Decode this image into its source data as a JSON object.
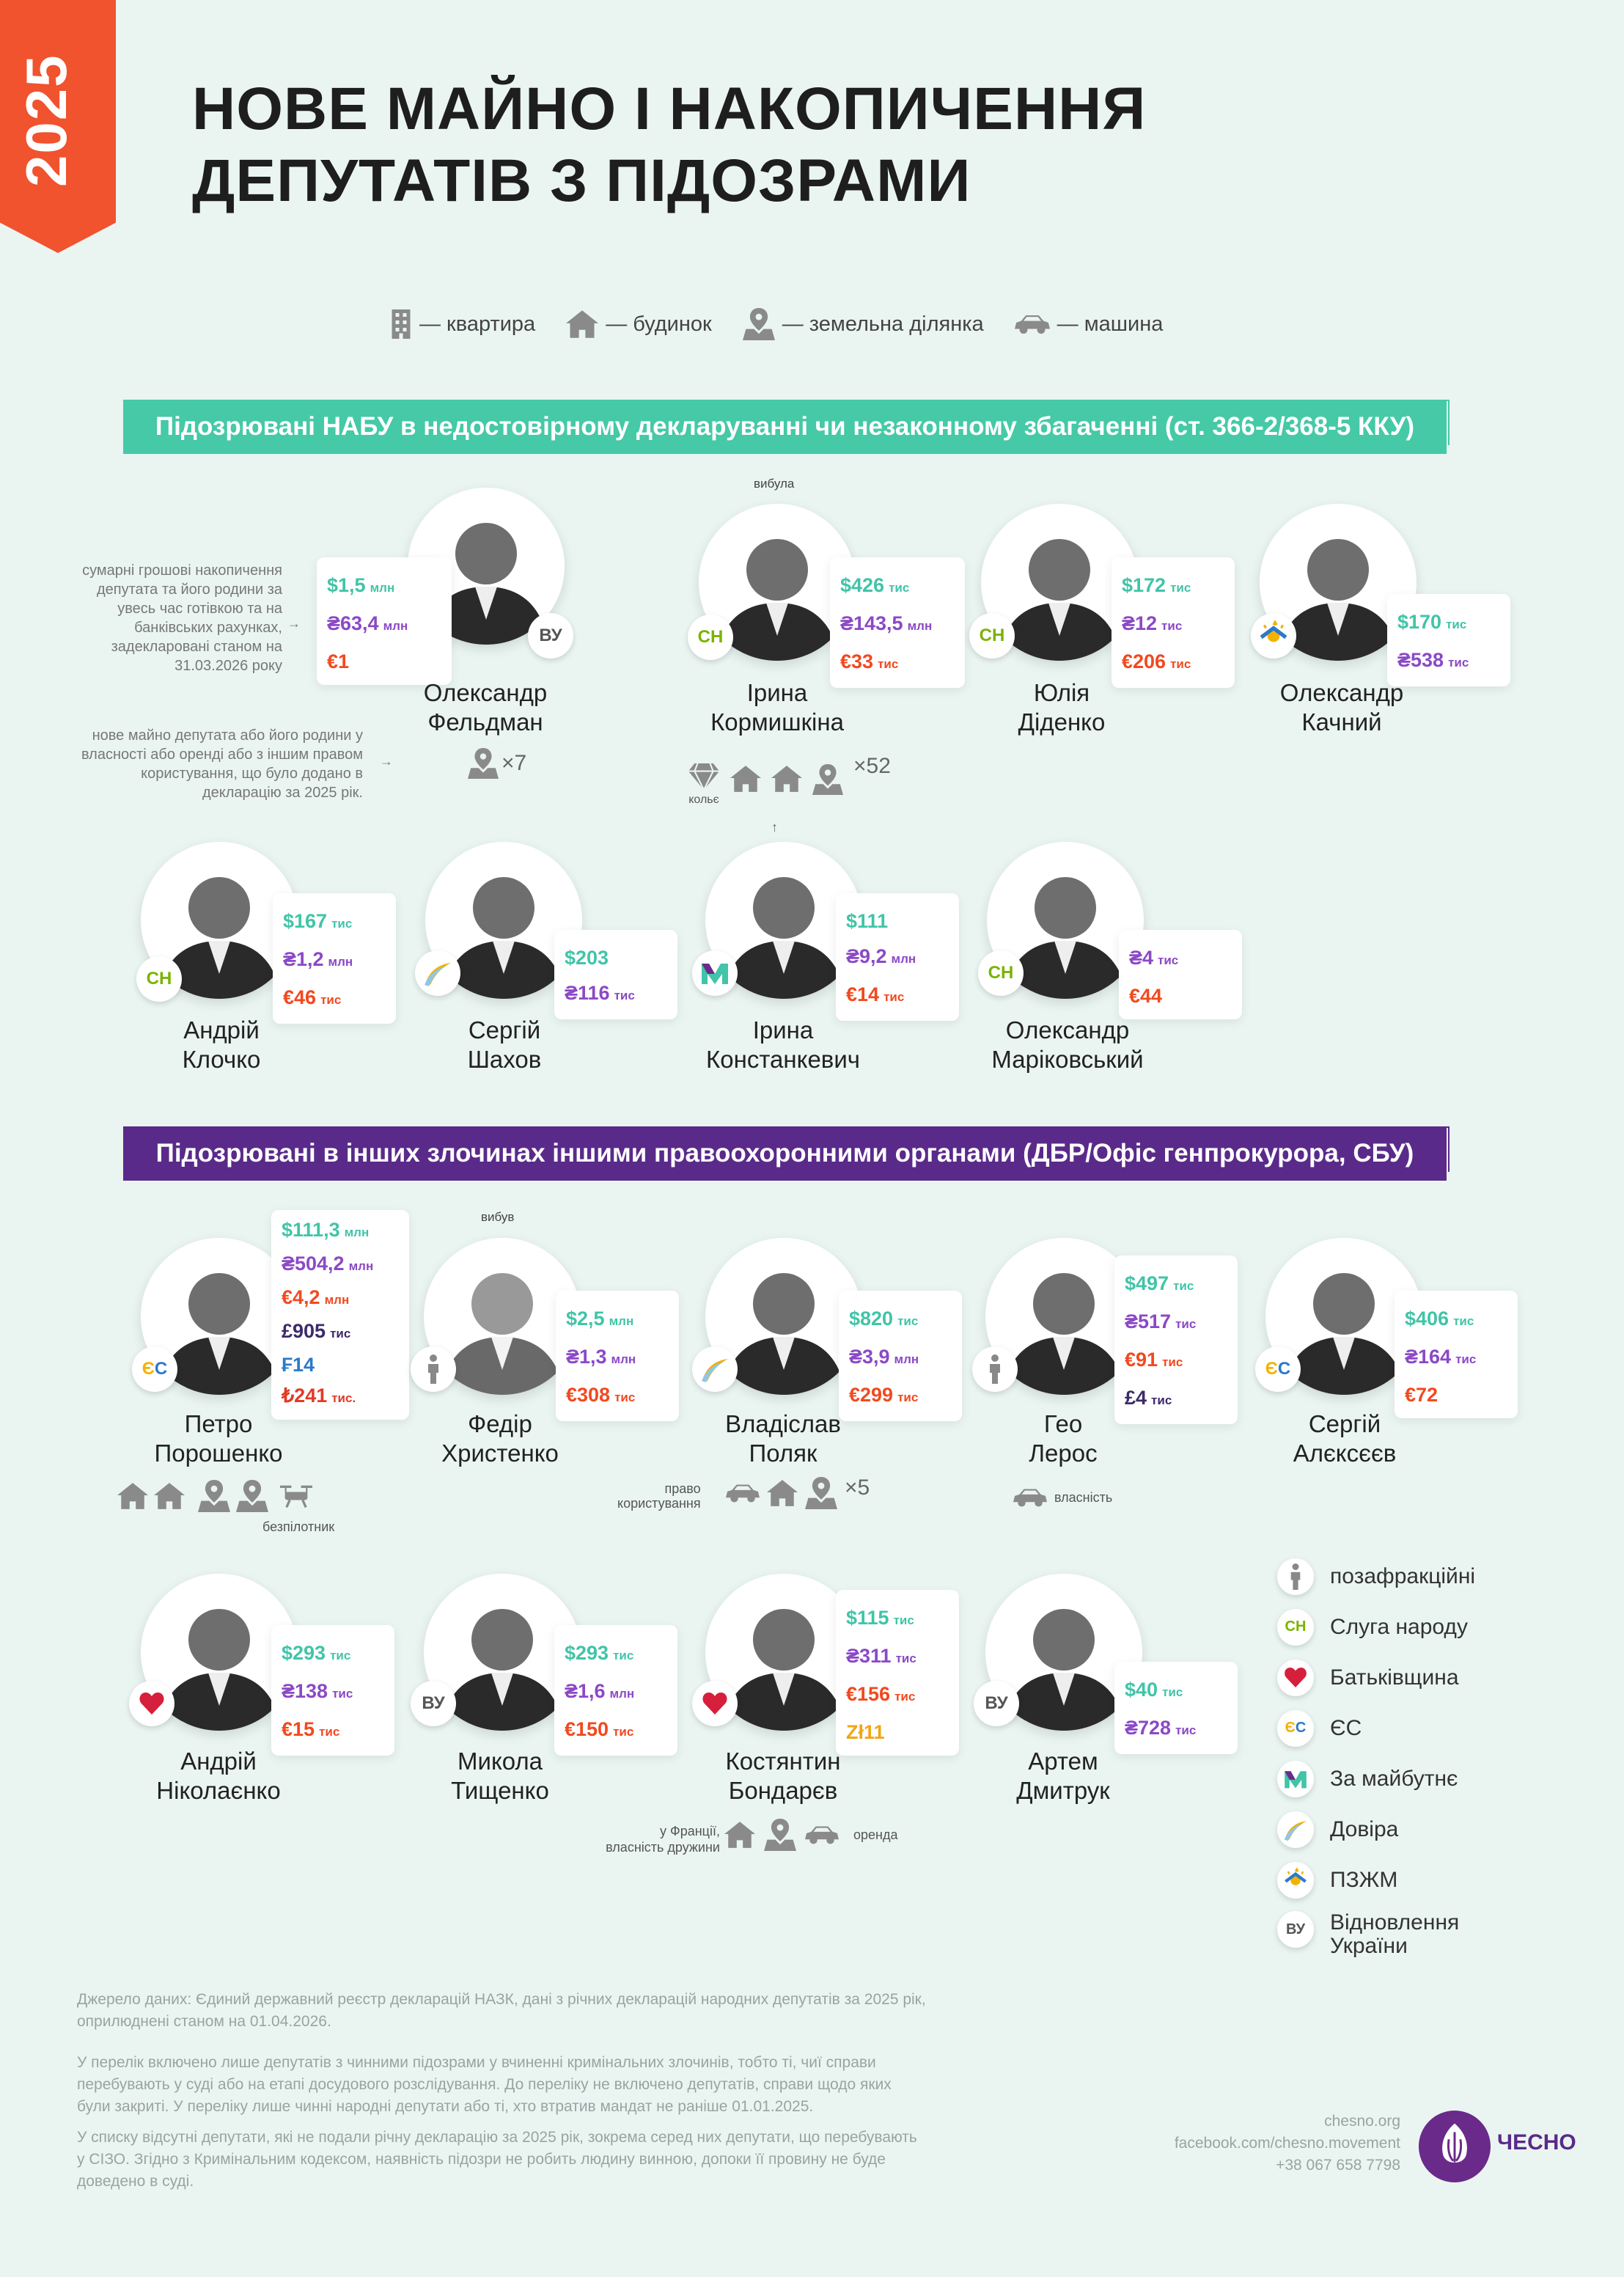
{
  "year": "2025",
  "title_line1": "НОВЕ МАЙНО І НАКОПИЧЕННЯ",
  "title_line2": "ДЕПУТАТІВ З ПІДОЗРАМИ",
  "legend": {
    "apartment": "— квартира",
    "house": "— будинок",
    "land": "— земельна ділянка",
    "car": "— машина"
  },
  "section1": "Підозрювані НАБУ в недостовірному декларуванні чи незаконному збагаченні (ст. 366-2/368-5 ККУ)",
  "section2": "Підозрювані в інших злочинах іншими правоохоронними органами (ДБР/Офіс генпрокурора, СБУ)",
  "explain_savings": "сумарні грошові накопичення депутата та його родини за увесь час готівкою та на банківських рахунках, задекларовані станом на 31.03.2026 року",
  "explain_property": "нове майно депутата або його родини у власності або оренді або з іншим правом користування, що було додано в декларацію за 2025 рік.",
  "colors": {
    "usd": "#41c4a8",
    "uah": "#8b49c6",
    "eur": "#f2491f",
    "section1": "#45c9a7",
    "section2": "#5a2a8a",
    "ribbon": "#f0532d"
  },
  "persons": {
    "feldman": {
      "name1": "Олександр",
      "name2": "Фельдман",
      "party": "ВУ",
      "v": [
        "$1,5",
        "₴63,4",
        "€1"
      ],
      "u": [
        "млн",
        "млн",
        ""
      ],
      "extra": "×7"
    },
    "kormyshkina": {
      "name1": "Ірина",
      "name2": "Кормишкіна",
      "party": "СН",
      "v": [
        "$426",
        "₴143,5",
        "€33"
      ],
      "u": [
        "тис",
        "млн",
        "тис"
      ],
      "tag": "вибула",
      "jewel": "кольє",
      "extra": "×52"
    },
    "didenko": {
      "name1": "Юлія",
      "name2": "Діденко",
      "party": "СН",
      "v": [
        "$172",
        "₴12",
        "€206"
      ],
      "u": [
        "тис",
        "тис",
        "тис"
      ]
    },
    "kachnyi": {
      "name1": "Олександр",
      "name2": "Качний",
      "party": "ПЗЖМ",
      "v": [
        "$170",
        "₴538"
      ],
      "u": [
        "тис",
        "тис"
      ]
    },
    "klochko": {
      "name1": "Андрій",
      "name2": "Клочко",
      "party": "СН",
      "v": [
        "$167",
        "₴1,2",
        "€46"
      ],
      "u": [
        "тис",
        "млн",
        "тис"
      ]
    },
    "shakhov": {
      "name1": "Сергій",
      "name2": "Шахов",
      "party": "Довіра",
      "v": [
        "$203",
        "₴116"
      ],
      "u": [
        "",
        "тис"
      ]
    },
    "konstankevych": {
      "name1": "Ірина",
      "name2": "Констанкевич",
      "party": "М",
      "v": [
        "$111",
        "₴9,2",
        "€14"
      ],
      "u": [
        "",
        "млн",
        "тис"
      ]
    },
    "marikovskyi": {
      "name1": "Олександр",
      "name2": "Маріковський",
      "party": "СН",
      "v": [
        "₴4",
        "€44"
      ],
      "u": [
        "тис",
        ""
      ]
    },
    "poroshenko": {
      "name1": "Петро",
      "name2": "Порошенко",
      "party": "ЄС",
      "v": [
        "$111,3",
        "₴504,2",
        "€4,2",
        "£905",
        "₣14",
        "₺241"
      ],
      "u": [
        "млн",
        "млн",
        "млн",
        "тис",
        "",
        "тис."
      ],
      "drone": "безпілотник"
    },
    "khrystenko": {
      "name1": "Федір",
      "name2": "Христенко",
      "party": "позафр",
      "v": [
        "$2,5",
        "₴1,3",
        "€308"
      ],
      "u": [
        "млн",
        "млн",
        "тис"
      ],
      "tag": "вибув"
    },
    "poliak": {
      "name1": "Владіслав",
      "name2": "Поляк",
      "party": "Довіра",
      "v": [
        "$820",
        "₴3,9",
        "€299"
      ],
      "u": [
        "тис",
        "млн",
        "тис"
      ],
      "note1": "право",
      "note2": "користування",
      "extra": "×5"
    },
    "leros": {
      "name1": "Гео",
      "name2": "Лерос",
      "party": "позафр",
      "v": [
        "$497",
        "₴517",
        "€91",
        "£4"
      ],
      "u": [
        "тис",
        "тис",
        "тис",
        "тис"
      ],
      "note": "власність"
    },
    "alekseev": {
      "name1": "Сергій",
      "name2": "Алєксєєв",
      "party": "ЄС",
      "v": [
        "$406",
        "₴164",
        "€72"
      ],
      "u": [
        "тис",
        "тис",
        ""
      ]
    },
    "nikolaienko": {
      "name1": "Андрій",
      "name2": "Ніколаєнко",
      "party": "Бат",
      "v": [
        "$293",
        "₴138",
        "€15"
      ],
      "u": [
        "тис",
        "тис",
        "тис"
      ]
    },
    "tyshchenko": {
      "name1": "Микола",
      "name2": "Тищенко",
      "party": "ВУ",
      "v": [
        "$293",
        "₴1,6",
        "€150"
      ],
      "u": [
        "тис",
        "млн",
        "тис"
      ]
    },
    "bondariev": {
      "name1": "Костянтин",
      "name2": "Бондарєв",
      "party": "Бат",
      "v": [
        "$115",
        "₴311",
        "€156",
        "Zł11"
      ],
      "u": [
        "тис",
        "тис",
        "тис",
        ""
      ],
      "note1": "у Франції,",
      "note2": "власність дружини",
      "note3": "оренда"
    },
    "dmytruk": {
      "name1": "Артем",
      "name2": "Дмитрук",
      "party": "ВУ",
      "v": [
        "$40",
        "₴728"
      ],
      "u": [
        "тис",
        "тис"
      ]
    }
  },
  "party_legend": [
    {
      "label": "позафракційні"
    },
    {
      "label": "Слуга народу"
    },
    {
      "label": "Батьківщина"
    },
    {
      "label": "ЄС"
    },
    {
      "label": "За майбутнє"
    },
    {
      "label": "Довіра"
    },
    {
      "label": "ПЗЖМ"
    },
    {
      "label": "Відновлення України"
    }
  ],
  "footer": {
    "source": "Джерело даних: Єдиний державний реєстр декларацій НАЗК, дані з річних декларацій народних депутатів за 2025 рік, оприлюднені станом на 01.04.2026.",
    "p1": "У перелік включено лише депутатів з чинними підозрами у вчиненні кримінальних злочинів, тобто ті, чиї справи перебувають у суді або на етапі досудового розслідування. До переліку не включено депутатів, справи щодо яких були закриті. У переліку лише чинні народні депутати або ті, хто втратив мандат не раніше 01.01.2025.",
    "p2": "У списку відсутні депутати, які не подали річну декларацію за 2025 рік, зокрема серед них депутати, що перебувають у СІЗО. Згідно з Кримінальним кодексом, наявність підозри не робить людину винною, допоки її провину не буде доведено в суді.",
    "site": "chesno.org",
    "fb": "facebook.com/chesno.movement",
    "phone": "+38 067 658 7798",
    "brand": "ЧЕСНО"
  }
}
